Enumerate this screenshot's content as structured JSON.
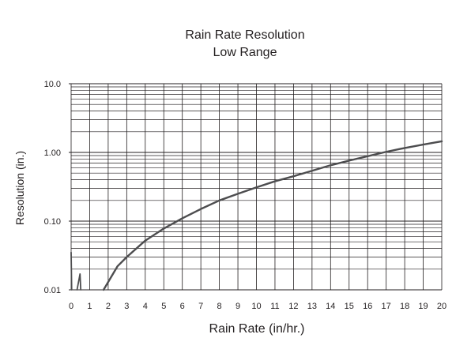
{
  "chart_data": {
    "type": "line",
    "title": "Rain Rate Resolution",
    "subtitle": "Low Range",
    "xlabel": "Rain Rate (in/hr.)",
    "ylabel": "Resolution (in.)",
    "xlim": [
      0,
      20
    ],
    "ylim": [
      0.01,
      10.0
    ],
    "yscale": "log",
    "grid": true,
    "x_ticks": [
      "0",
      "1",
      "2",
      "3",
      "4",
      "5",
      "6",
      "7",
      "8",
      "9",
      "10",
      "11",
      "12",
      "13",
      "14",
      "15",
      "16",
      "17",
      "18",
      "19",
      "20"
    ],
    "y_ticks": [
      {
        "label": "0.01",
        "value": 0.01
      },
      {
        "label": "0.10",
        "value": 0.1
      },
      {
        "label": "1.00",
        "value": 1.0
      },
      {
        "label": "10.0",
        "value": 10.0
      }
    ],
    "series": [
      {
        "values": [
          {
            "x": 1.75,
            "y": 0.01
          },
          {
            "x": 2.5,
            "y": 0.022
          },
          {
            "x": 3,
            "y": 0.03
          },
          {
            "x": 4,
            "y": 0.052
          },
          {
            "x": 5,
            "y": 0.078
          },
          {
            "x": 6,
            "y": 0.11
          },
          {
            "x": 7,
            "y": 0.15
          },
          {
            "x": 8,
            "y": 0.2
          },
          {
            "x": 9,
            "y": 0.25
          },
          {
            "x": 10,
            "y": 0.31
          },
          {
            "x": 11,
            "y": 0.38
          },
          {
            "x": 12,
            "y": 0.45
          },
          {
            "x": 13,
            "y": 0.54
          },
          {
            "x": 14,
            "y": 0.65
          },
          {
            "x": 15,
            "y": 0.76
          },
          {
            "x": 16,
            "y": 0.88
          },
          {
            "x": 17,
            "y": 1.02
          },
          {
            "x": 18,
            "y": 1.16
          },
          {
            "x": 19,
            "y": 1.3
          },
          {
            "x": 20,
            "y": 1.45
          }
        ]
      },
      {
        "values": [
          {
            "x": 0.0,
            "y": 0.035
          },
          {
            "x": 0.03,
            "y": 0.01
          }
        ]
      },
      {
        "values": [
          {
            "x": 0.32,
            "y": 0.01
          },
          {
            "x": 0.48,
            "y": 0.017
          },
          {
            "x": 0.52,
            "y": 0.01
          }
        ]
      }
    ],
    "colors": {
      "line": "#4d4d4f",
      "grid": "#231f20",
      "text": "#231f20"
    }
  }
}
